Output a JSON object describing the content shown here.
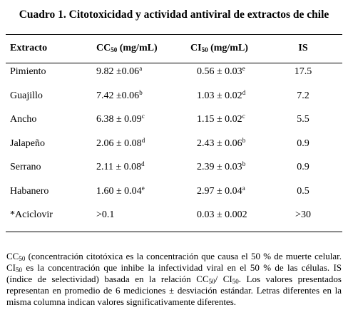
{
  "title": "Cuadro 1. Citotoxicidad y actividad antiviral de extractos de chile",
  "table": {
    "header": [
      [
        {
          "text": "Extracto"
        }
      ],
      [
        {
          "text": "CC"
        },
        {
          "sub": "50"
        },
        {
          "text": " (mg/mL)"
        }
      ],
      [
        {
          "text": "CI"
        },
        {
          "sub": "50"
        },
        {
          "text": " (mg/mL)"
        }
      ],
      [
        {
          "text": "IS"
        }
      ]
    ],
    "rows": [
      [
        [
          {
            "text": "Pimiento"
          }
        ],
        [
          {
            "text": "9.82 ±0.06"
          },
          {
            "sup": "a"
          }
        ],
        [
          {
            "text": "0.56 ± 0.03"
          },
          {
            "sup": "e"
          }
        ],
        [
          {
            "text": "17.5"
          }
        ]
      ],
      [
        [
          {
            "text": "Guajillo"
          }
        ],
        [
          {
            "text": "7.42 ±0.06"
          },
          {
            "sup": "b"
          }
        ],
        [
          {
            "text": "1.03 ± 0.02"
          },
          {
            "sup": "d"
          }
        ],
        [
          {
            "text": "7.2"
          }
        ]
      ],
      [
        [
          {
            "text": "Ancho"
          }
        ],
        [
          {
            "text": "6.38 ± 0.09"
          },
          {
            "sup": "c"
          }
        ],
        [
          {
            "text": "1.15 ± 0.02"
          },
          {
            "sup": "c"
          }
        ],
        [
          {
            "text": "5.5"
          }
        ]
      ],
      [
        [
          {
            "text": "Jalapeño"
          }
        ],
        [
          {
            "text": "2.06 ± 0.08"
          },
          {
            "sup": "d"
          }
        ],
        [
          {
            "text": "2.43 ± 0.06"
          },
          {
            "sup": "b"
          }
        ],
        [
          {
            "text": "0.9"
          }
        ]
      ],
      [
        [
          {
            "text": "Serrano"
          }
        ],
        [
          {
            "text": "2.11 ± 0.08"
          },
          {
            "sup": "d"
          }
        ],
        [
          {
            "text": "2.39 ± 0.03"
          },
          {
            "sup": "b"
          }
        ],
        [
          {
            "text": "0.9"
          }
        ]
      ],
      [
        [
          {
            "text": "Habanero"
          }
        ],
        [
          {
            "text": "1.60 ± 0.04"
          },
          {
            "sup": "e"
          }
        ],
        [
          {
            "text": "2.97 ± 0.04"
          },
          {
            "sup": "a"
          }
        ],
        [
          {
            "text": "0.5"
          }
        ]
      ],
      [
        [
          {
            "text": "*Aciclovir"
          }
        ],
        [
          {
            "text": ">0.1"
          }
        ],
        [
          {
            "text": "0.03 ± 0.002"
          }
        ],
        [
          {
            "text": ">30"
          }
        ]
      ]
    ]
  },
  "footnote": [
    {
      "text": "CC"
    },
    {
      "sub": "50"
    },
    {
      "text": " (concentración citotóxica es la concentración que causa el 50 % de muerte celular. CI"
    },
    {
      "sub": "50"
    },
    {
      "text": " es la concentración que inhibe la infectividad viral en el 50 % de las células. IS (índice de selectividad)  basada en la relación CC"
    },
    {
      "sub": "50"
    },
    {
      "text": "/ CI"
    },
    {
      "sub": "50"
    },
    {
      "text": ". Los valores presentados representan en promedio de 6 mediciones ± desviación estándar. Letras diferentes en la misma columna indican valores significativamente diferentes."
    }
  ]
}
